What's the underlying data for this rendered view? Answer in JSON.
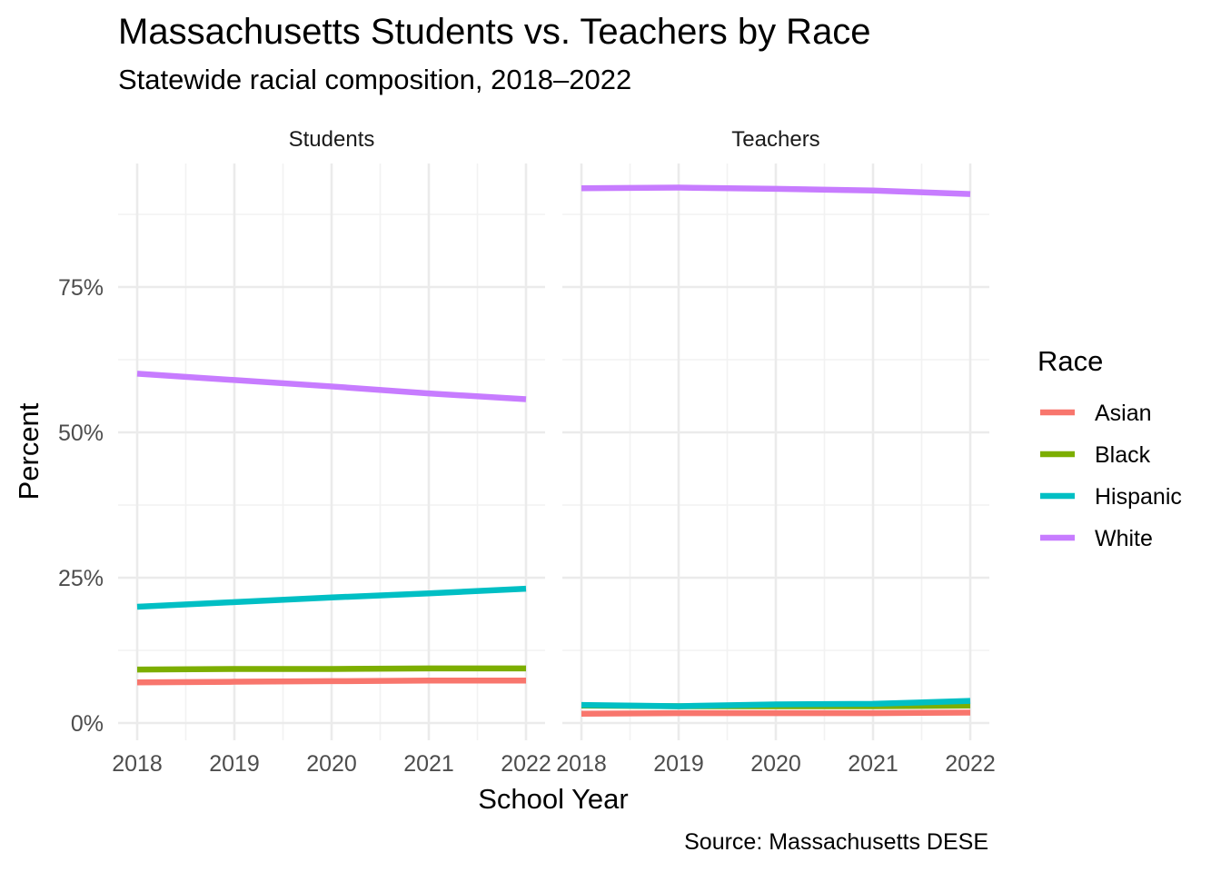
{
  "chart_data": {
    "type": "line",
    "title": "Massachusetts Students vs. Teachers by Race",
    "subtitle": "Statewide racial composition, 2018–2022",
    "xlabel": "School Year",
    "ylabel": "Percent",
    "caption": "Source: Massachusetts DESE",
    "ylim": [
      0,
      95
    ],
    "x": [
      2018,
      2019,
      2020,
      2021,
      2022
    ],
    "y_ticks": [
      0,
      25,
      50,
      75
    ],
    "y_tick_labels": [
      "0%",
      "25%",
      "50%",
      "75%"
    ],
    "x_tick_labels": [
      "2018",
      "2019",
      "2020",
      "2021",
      "2022"
    ],
    "legend": {
      "title": "Race",
      "placement": "right",
      "entries": [
        {
          "name": "Asian",
          "color": "#F8766D"
        },
        {
          "name": "Black",
          "color": "#7CAE00"
        },
        {
          "name": "Hispanic",
          "color": "#00BFC4"
        },
        {
          "name": "White",
          "color": "#C77CFF"
        }
      ]
    },
    "panels": [
      {
        "name": "Students",
        "series": [
          {
            "name": "Asian",
            "values": [
              7.0,
              7.1,
              7.2,
              7.3,
              7.3
            ]
          },
          {
            "name": "Black",
            "values": [
              9.2,
              9.3,
              9.3,
              9.4,
              9.4
            ]
          },
          {
            "name": "Hispanic",
            "values": [
              20.0,
              20.8,
              21.6,
              22.3,
              23.1
            ]
          },
          {
            "name": "White",
            "values": [
              60.1,
              59.0,
              57.9,
              56.7,
              55.7
            ]
          }
        ]
      },
      {
        "name": "Teachers",
        "series": [
          {
            "name": "Asian",
            "values": [
              1.6,
              1.7,
              1.7,
              1.7,
              1.8
            ]
          },
          {
            "name": "Black",
            "values": [
              3.0,
              2.9,
              2.9,
              2.9,
              3.0
            ]
          },
          {
            "name": "Hispanic",
            "values": [
              3.1,
              2.9,
              3.2,
              3.3,
              3.8
            ]
          },
          {
            "name": "White",
            "values": [
              92.0,
              92.1,
              91.9,
              91.6,
              91.0
            ]
          }
        ]
      }
    ]
  }
}
